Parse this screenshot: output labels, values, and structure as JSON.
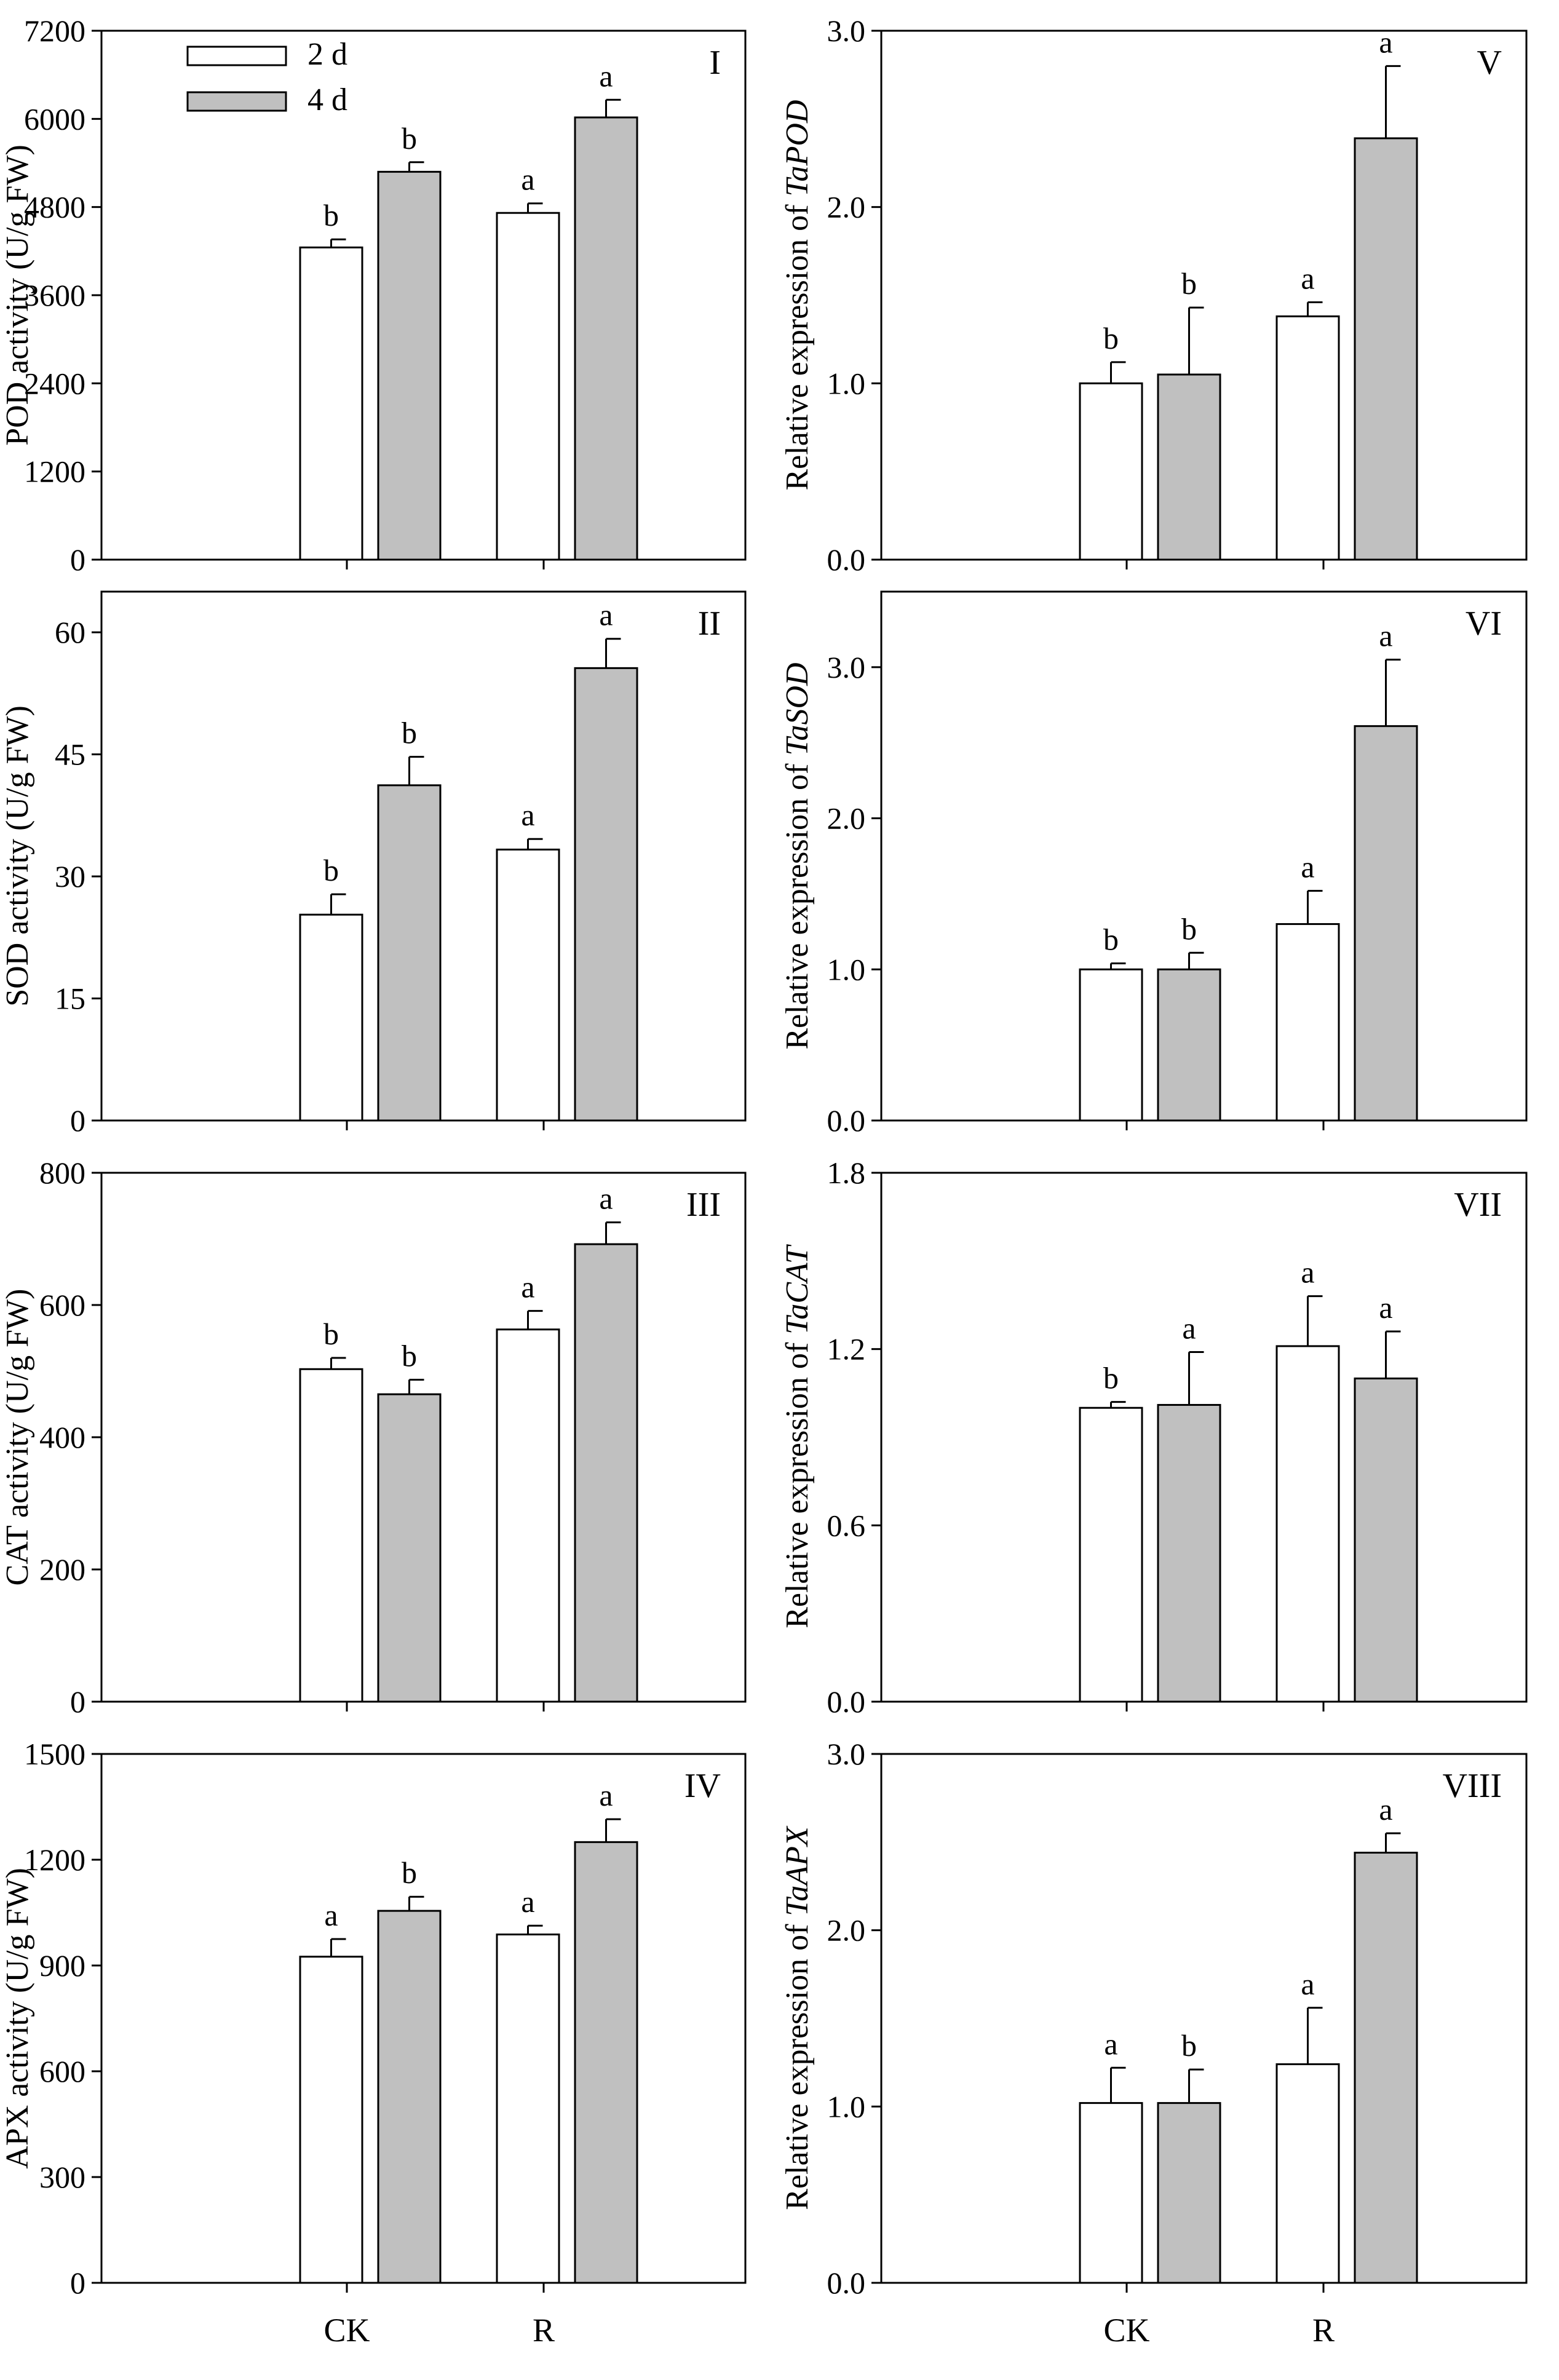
{
  "colors": {
    "series_2d": "#ffffff",
    "series_4d": "#c0c0c0",
    "stroke": "#000000"
  },
  "legend": [
    {
      "name": "2 d"
    },
    {
      "name": "4 d"
    }
  ],
  "chart_data": [
    {
      "type": "bar",
      "panel": "I",
      "ylabel": "POD activity (U/g FW)",
      "ylabel_italic": "",
      "categories": [
        "CK",
        "R"
      ],
      "ylim": [
        0,
        7200
      ],
      "ticks": [
        0,
        1200,
        2400,
        3600,
        4800,
        6000,
        7200
      ],
      "tick_labels": [
        "0",
        "1200",
        "2400",
        "3600",
        "4800",
        "6000",
        "7200"
      ],
      "series": [
        {
          "name": "2 d",
          "values": [
            4250,
            4720
          ],
          "errors": [
            110,
            130
          ],
          "labels": [
            "b",
            "a"
          ]
        },
        {
          "name": "4 d",
          "values": [
            5280,
            6020
          ],
          "errors": [
            130,
            240
          ],
          "labels": [
            "b",
            "a"
          ]
        }
      ]
    },
    {
      "type": "bar",
      "panel": "II",
      "ylabel": "SOD activity (U/g FW)",
      "ylabel_italic": "",
      "categories": [
        "CK",
        "R"
      ],
      "ylim": [
        0,
        65
      ],
      "ticks": [
        0,
        15,
        30,
        45,
        60
      ],
      "tick_labels": [
        "0",
        "15",
        "30",
        "45",
        "60"
      ],
      "series": [
        {
          "name": "2 d",
          "values": [
            25.3,
            33.3
          ],
          "errors": [
            2.5,
            1.3
          ],
          "labels": [
            "b",
            "a"
          ]
        },
        {
          "name": "4 d",
          "values": [
            41.2,
            55.6
          ],
          "errors": [
            3.5,
            3.6
          ],
          "labels": [
            "b",
            "a"
          ]
        }
      ]
    },
    {
      "type": "bar",
      "panel": "III",
      "ylabel": "CAT activity (U/g FW)",
      "ylabel_italic": "",
      "categories": [
        "CK",
        "R"
      ],
      "ylim": [
        0,
        800
      ],
      "ticks": [
        0,
        200,
        400,
        600,
        800
      ],
      "tick_labels": [
        "0",
        "200",
        "400",
        "600",
        "800"
      ],
      "series": [
        {
          "name": "2 d",
          "values": [
            503,
            563
          ],
          "errors": [
            17,
            28
          ],
          "labels": [
            "b",
            "a"
          ]
        },
        {
          "name": "4 d",
          "values": [
            465,
            692
          ],
          "errors": [
            22,
            33
          ],
          "labels": [
            "b",
            "a"
          ]
        }
      ]
    },
    {
      "type": "bar",
      "panel": "IV",
      "ylabel": "APX activity (U/g FW)",
      "ylabel_italic": "",
      "categories": [
        "CK",
        "R"
      ],
      "ylim": [
        0,
        1500
      ],
      "ticks": [
        0,
        300,
        600,
        900,
        1200,
        1500
      ],
      "tick_labels": [
        "0",
        "300",
        "600",
        "900",
        "1200",
        "1500"
      ],
      "series": [
        {
          "name": "2 d",
          "values": [
            925,
            988
          ],
          "errors": [
            50,
            25
          ],
          "labels": [
            "a",
            "a"
          ]
        },
        {
          "name": "4 d",
          "values": [
            1055,
            1250
          ],
          "errors": [
            40,
            65
          ],
          "labels": [
            "b",
            "a"
          ]
        }
      ]
    },
    {
      "type": "bar",
      "panel": "V",
      "ylabel": "Relative expression of ",
      "ylabel_italic": "TaPOD",
      "categories": [
        "CK",
        "R"
      ],
      "ylim": [
        0,
        3.0
      ],
      "ticks": [
        0,
        1,
        2,
        3
      ],
      "tick_labels": [
        "0.0",
        "1.0",
        "2.0",
        "3.0"
      ],
      "series": [
        {
          "name": "2 d",
          "values": [
            1.0,
            1.38
          ],
          "errors": [
            0.12,
            0.08
          ],
          "labels": [
            "b",
            "a"
          ]
        },
        {
          "name": "4 d",
          "values": [
            1.05,
            2.39
          ],
          "errors": [
            0.38,
            0.41
          ],
          "labels": [
            "b",
            "a"
          ]
        }
      ]
    },
    {
      "type": "bar",
      "panel": "VI",
      "ylabel": "Relative expression of ",
      "ylabel_italic": "TaSOD",
      "categories": [
        "CK",
        "R"
      ],
      "ylim": [
        0,
        3.5
      ],
      "ticks": [
        0,
        1,
        2,
        3
      ],
      "tick_labels": [
        "0.0",
        "1.0",
        "2.0",
        "3.0"
      ],
      "series": [
        {
          "name": "2 d",
          "values": [
            1.0,
            1.3
          ],
          "errors": [
            0.04,
            0.22
          ],
          "labels": [
            "b",
            "a"
          ]
        },
        {
          "name": "4 d",
          "values": [
            1.0,
            2.61
          ],
          "errors": [
            0.11,
            0.44
          ],
          "labels": [
            "b",
            "a"
          ]
        }
      ]
    },
    {
      "type": "bar",
      "panel": "VII",
      "ylabel": "Relative expression of ",
      "ylabel_italic": "TaCAT",
      "categories": [
        "CK",
        "R"
      ],
      "ylim": [
        0,
        1.8
      ],
      "ticks": [
        0,
        0.6,
        1.2,
        1.8
      ],
      "tick_labels": [
        "0.0",
        "0.6",
        "1.2",
        "1.8"
      ],
      "series": [
        {
          "name": "2 d",
          "values": [
            1.0,
            1.21
          ],
          "errors": [
            0.02,
            0.17
          ],
          "labels": [
            "b",
            "a"
          ]
        },
        {
          "name": "4 d",
          "values": [
            1.01,
            1.1
          ],
          "errors": [
            0.18,
            0.16
          ],
          "labels": [
            "a",
            "a"
          ]
        }
      ]
    },
    {
      "type": "bar",
      "panel": "VIII",
      "ylabel": "Relative expression of ",
      "ylabel_italic": "TaAPX",
      "categories": [
        "CK",
        "R"
      ],
      "ylim": [
        0,
        3.0
      ],
      "ticks": [
        0,
        1,
        2,
        3
      ],
      "tick_labels": [
        "0.0",
        "1.0",
        "2.0",
        "3.0"
      ],
      "series": [
        {
          "name": "2 d",
          "values": [
            1.02,
            1.24
          ],
          "errors": [
            0.2,
            0.32
          ],
          "labels": [
            "a",
            "a"
          ]
        },
        {
          "name": "4 d",
          "values": [
            1.02,
            2.44
          ],
          "errors": [
            0.19,
            0.11
          ],
          "labels": [
            "b",
            "a"
          ]
        }
      ]
    }
  ]
}
